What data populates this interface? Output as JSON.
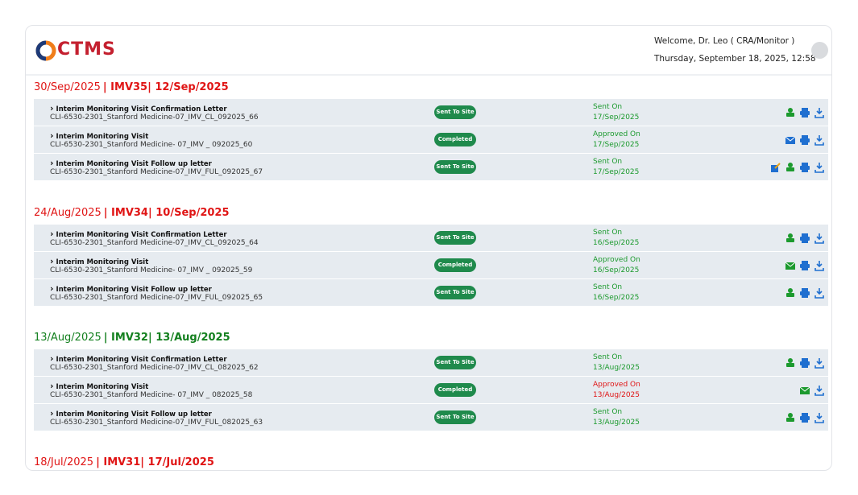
{
  "header": {
    "logo": "CTMS",
    "welcome": "Welcome, Dr. Leo ( CRA/Monitor )",
    "datetime": "Thursday, September 18, 2025, 12:58"
  },
  "sections": [
    {
      "date": "30/Sep/2025",
      "visit": "| IMV35| 12/Sep/2025",
      "color": "#e01515",
      "rows": [
        {
          "title": "Interim Monitoring Visit Confirmation Letter",
          "id": "CLI-6530-2301_Stanford Medicine-07_IMV_CL_092025_66",
          "badge": "Sent To Site",
          "status": "Sent On",
          "status_date": "17/Sep/2025",
          "color": "#1c9a2e"
        },
        {
          "title": "Interim Monitoring Visit",
          "id": "CLI-6530-2301_Stanford Medicine- 07_IMV _ 092025_60",
          "badge": "Completed",
          "status": "Approved On",
          "status_date": "17/Sep/2025",
          "color": "#1c9a2e"
        },
        {
          "title": "Interim Monitoring Visit Follow up letter",
          "id": "CLI-6530-2301_Stanford Medicine-07_IMV_FUL_092025_67",
          "badge": "Sent To Site",
          "status": "Sent On",
          "status_date": "17/Sep/2025",
          "color": "#1c9a2e"
        }
      ]
    },
    {
      "date": "24/Aug/2025",
      "visit": "| IMV34| 10/Sep/2025",
      "color": "#e01515",
      "rows": [
        {
          "title": "Interim Monitoring Visit Confirmation Letter",
          "id": "CLI-6530-2301_Stanford Medicine-07_IMV_CL_092025_64",
          "badge": "Sent To Site",
          "status": "Sent On",
          "status_date": "16/Sep/2025",
          "color": "#1c9a2e"
        },
        {
          "title": "Interim Monitoring Visit",
          "id": "CLI-6530-2301_Stanford Medicine- 07_IMV _ 092025_59",
          "badge": "Completed",
          "status": "Approved On",
          "status_date": "16/Sep/2025",
          "color": "#1c9a2e"
        },
        {
          "title": "Interim Monitoring Visit Follow up letter",
          "id": "CLI-6530-2301_Stanford Medicine-07_IMV_FUL_092025_65",
          "badge": "Sent To Site",
          "status": "Sent On",
          "status_date": "16/Sep/2025",
          "color": "#1c9a2e"
        }
      ]
    },
    {
      "date": "13/Aug/2025",
      "visit": "| IMV32| 13/Aug/2025",
      "color": "#14801f",
      "rows": [
        {
          "title": "Interim Monitoring Visit Confirmation Letter",
          "id": "CLI-6530-2301_Stanford Medicine-07_IMV_CL_082025_62",
          "badge": "Sent To Site",
          "status": "Sent On",
          "status_date": "13/Aug/2025",
          "color": "#1c9a2e"
        },
        {
          "title": "Interim Monitoring Visit",
          "id": "CLI-6530-2301_Stanford Medicine- 07_IMV _ 082025_58",
          "badge": "Completed",
          "status": "Approved On",
          "status_date": "13/Aug/2025",
          "color": "#e01515"
        },
        {
          "title": "Interim Monitoring Visit Follow up letter",
          "id": "CLI-6530-2301_Stanford Medicine-07_IMV_FUL_082025_63",
          "badge": "Sent To Site",
          "status": "Sent On",
          "status_date": "13/Aug/2025",
          "color": "#1c9a2e"
        }
      ]
    },
    {
      "date": "18/Jul/2025",
      "visit": "| IMV31| 17/Jul/2025",
      "color": "#e01515",
      "rows": []
    }
  ]
}
